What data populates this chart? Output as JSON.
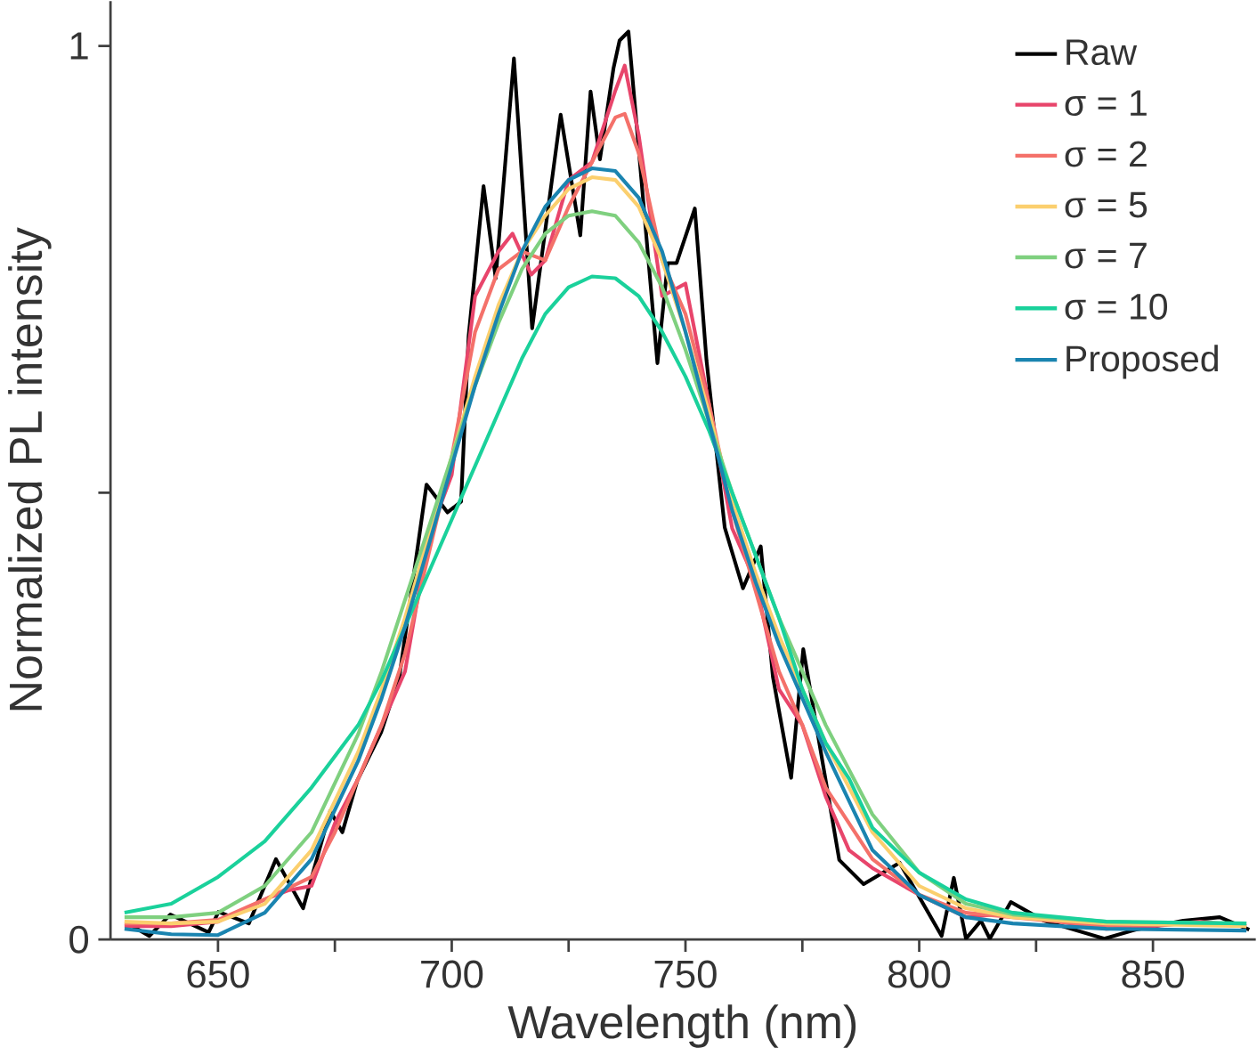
{
  "chart_data": {
    "type": "line",
    "xlabel": "Wavelength (nm)",
    "ylabel": "Normalized PL intensity",
    "xlim": [
      627,
      872
    ],
    "ylim": [
      0,
      1.05
    ],
    "xticks": [
      650,
      {
        "value": 675,
        "label": null
      },
      700,
      {
        "value": 725,
        "label": null
      },
      750,
      {
        "value": 775,
        "label": null
      },
      800,
      {
        "value": 825,
        "label": null
      },
      850
    ],
    "yticks": [
      0,
      {
        "value": 0.5,
        "label": null
      },
      1
    ],
    "legend": "top right",
    "grid": false,
    "marker": "none",
    "line_style": "solid",
    "series": [
      {
        "name": "Raw",
        "color": "#000000",
        "x": [
          630.7,
          635.3,
          639.8,
          648,
          650.1,
          656.6,
          662.4,
          668.2,
          674,
          676.6,
          679.8,
          684.9,
          688.8,
          694.6,
          699.1,
          702,
          703.6,
          706.8,
          709.4,
          713.3,
          717.2,
          723.3,
          727.5,
          729.7,
          731.7,
          734.6,
          735.9,
          737.8,
          744,
          746.2,
          748.1,
          752,
          754.5,
          758.4,
          762.3,
          766.1,
          768.7,
          772.6,
          775.2,
          782.9,
          788.1,
          795.8,
          804.8,
          807.4,
          810,
          813.2,
          815.1,
          819.6,
          826.7,
          839.6,
          846.2,
          856.5,
          864.3,
          870.6
        ],
        "values": [
          0.018,
          0.004,
          0.028,
          0.008,
          0.031,
          0.018,
          0.09,
          0.035,
          0.144,
          0.12,
          0.178,
          0.232,
          0.294,
          0.509,
          0.478,
          0.49,
          0.675,
          0.843,
          0.74,
          0.986,
          0.684,
          0.923,
          0.788,
          0.949,
          0.873,
          0.975,
          1.006,
          1.016,
          0.645,
          0.757,
          0.757,
          0.818,
          0.648,
          0.461,
          0.393,
          0.44,
          0.294,
          0.181,
          0.325,
          0.089,
          0.062,
          0.086,
          0.004,
          0.069,
          0.001,
          0.021,
          0.001,
          0.042,
          0.021,
          0.001,
          0.011,
          0.021,
          0.025,
          0.011
        ]
      },
      {
        "name": "σ = 1",
        "color": "#e8456b",
        "x": [
          630,
          640,
          650,
          660,
          665,
          670,
          675,
          680,
          685,
          690,
          695,
          700,
          705,
          710,
          713,
          717,
          720,
          725,
          730,
          735,
          737,
          740,
          745,
          750,
          755,
          760,
          765,
          770,
          775,
          780,
          785,
          790,
          800,
          810,
          820,
          830,
          840,
          850,
          860,
          870
        ],
        "values": [
          0.015,
          0.015,
          0.02,
          0.045,
          0.055,
          0.06,
          0.13,
          0.18,
          0.24,
          0.3,
          0.45,
          0.52,
          0.72,
          0.77,
          0.79,
          0.744,
          0.76,
          0.85,
          0.87,
          0.95,
          0.978,
          0.9,
          0.72,
          0.734,
          0.6,
          0.46,
          0.4,
          0.28,
          0.24,
          0.16,
          0.1,
          0.08,
          0.05,
          0.025,
          0.03,
          0.02,
          0.012,
          0.015,
          0.02,
          0.015
        ]
      },
      {
        "name": "σ = 2",
        "color": "#f4716a",
        "x": [
          630,
          640,
          650,
          660,
          670,
          675,
          680,
          685,
          690,
          695,
          700,
          705,
          710,
          715,
          720,
          725,
          730,
          735,
          737,
          740,
          745,
          750,
          755,
          760,
          765,
          770,
          775,
          780,
          790,
          800,
          810,
          820,
          840,
          860,
          870
        ],
        "values": [
          0.018,
          0.018,
          0.022,
          0.045,
          0.07,
          0.12,
          0.18,
          0.24,
          0.32,
          0.43,
          0.54,
          0.68,
          0.75,
          0.77,
          0.76,
          0.82,
          0.87,
          0.92,
          0.924,
          0.88,
          0.76,
          0.7,
          0.6,
          0.48,
          0.39,
          0.3,
          0.24,
          0.17,
          0.09,
          0.05,
          0.03,
          0.025,
          0.015,
          0.018,
          0.015
        ]
      },
      {
        "name": "σ = 5",
        "color": "#fbcf6e",
        "x": [
          630,
          640,
          650,
          660,
          670,
          680,
          685,
          690,
          695,
          700,
          705,
          710,
          715,
          720,
          725,
          730,
          735,
          740,
          745,
          750,
          755,
          760,
          765,
          770,
          775,
          780,
          790,
          800,
          810,
          820,
          840,
          870
        ],
        "values": [
          0.02,
          0.018,
          0.02,
          0.04,
          0.1,
          0.21,
          0.28,
          0.36,
          0.45,
          0.54,
          0.63,
          0.71,
          0.77,
          0.81,
          0.84,
          0.853,
          0.85,
          0.82,
          0.76,
          0.68,
          0.59,
          0.49,
          0.41,
          0.34,
          0.28,
          0.22,
          0.12,
          0.06,
          0.035,
          0.025,
          0.018,
          0.015
        ]
      },
      {
        "name": "σ = 7",
        "color": "#7fd07f",
        "x": [
          630,
          640,
          650,
          660,
          670,
          680,
          685,
          690,
          695,
          700,
          705,
          710,
          715,
          720,
          725,
          730,
          735,
          740,
          745,
          750,
          755,
          760,
          765,
          770,
          775,
          780,
          790,
          800,
          810,
          820,
          840,
          870
        ],
        "values": [
          0.025,
          0.025,
          0.03,
          0.06,
          0.12,
          0.23,
          0.3,
          0.38,
          0.46,
          0.54,
          0.62,
          0.69,
          0.75,
          0.79,
          0.81,
          0.815,
          0.81,
          0.78,
          0.73,
          0.66,
          0.58,
          0.5,
          0.43,
          0.36,
          0.3,
          0.24,
          0.14,
          0.075,
          0.04,
          0.028,
          0.02,
          0.018
        ]
      },
      {
        "name": "σ = 10",
        "color": "#1ad19b",
        "x": [
          630,
          640,
          650,
          660,
          670,
          680,
          685,
          690,
          695,
          700,
          705,
          710,
          715,
          720,
          725,
          730,
          735,
          740,
          745,
          750,
          755,
          760,
          765,
          770,
          775,
          780,
          785,
          790,
          800,
          810,
          820,
          840,
          870
        ],
        "values": [
          0.03,
          0.04,
          0.07,
          0.11,
          0.17,
          0.24,
          0.29,
          0.35,
          0.41,
          0.47,
          0.53,
          0.59,
          0.65,
          0.7,
          0.73,
          0.742,
          0.74,
          0.72,
          0.68,
          0.63,
          0.57,
          0.5,
          0.43,
          0.36,
          0.28,
          0.22,
          0.18,
          0.125,
          0.075,
          0.045,
          0.03,
          0.02,
          0.018
        ]
      },
      {
        "name": "Proposed",
        "color": "#1a84b0",
        "x": [
          630,
          640,
          650,
          660,
          670,
          680,
          685,
          690,
          695,
          700,
          705,
          710,
          715,
          720,
          725,
          730,
          735,
          740,
          745,
          750,
          755,
          760,
          765,
          770,
          775,
          780,
          790,
          800,
          810,
          820,
          840,
          870
        ],
        "values": [
          0.012,
          0.006,
          0.005,
          0.03,
          0.09,
          0.2,
          0.27,
          0.35,
          0.44,
          0.53,
          0.62,
          0.7,
          0.77,
          0.82,
          0.85,
          0.863,
          0.86,
          0.83,
          0.77,
          0.68,
          0.58,
          0.48,
          0.4,
          0.33,
          0.27,
          0.21,
          0.1,
          0.05,
          0.025,
          0.018,
          0.012,
          0.01
        ]
      }
    ]
  }
}
